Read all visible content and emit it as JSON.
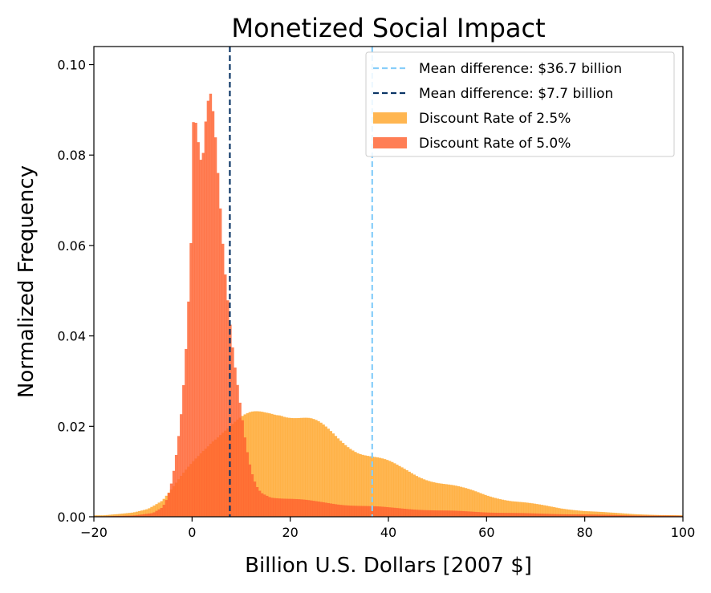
{
  "chart_data": {
    "type": "histogram",
    "title": "Monetized Social Impact",
    "xlabel": "Billion U.S. Dollars [2007 $]",
    "ylabel": "Normalized Frequency",
    "xlim": [
      -20,
      100
    ],
    "ylim": [
      0,
      0.104
    ],
    "xticks": [
      -20,
      0,
      20,
      40,
      60,
      80,
      100
    ],
    "xtick_labels": [
      "−20",
      "0",
      "20",
      "40",
      "60",
      "80",
      "100"
    ],
    "yticks": [
      0.0,
      0.02,
      0.04,
      0.06,
      0.08,
      0.1
    ],
    "ytick_labels": [
      "0.00",
      "0.02",
      "0.04",
      "0.06",
      "0.08",
      "0.10"
    ],
    "legend_position": "top-right",
    "vlines": [
      {
        "label": "Mean difference: $36.7 billion",
        "x": 36.7,
        "color": "#87CEFA",
        "style": "dashed"
      },
      {
        "label": "Mean difference: $7.7 billion",
        "x": 7.7,
        "color": "#0B3566",
        "style": "dashed"
      }
    ],
    "series": [
      {
        "name": "Discount Rate of 2.5%",
        "color": "#FFA62B",
        "opacity": 0.82,
        "points": [
          [
            -18,
            0.0003
          ],
          [
            -15,
            0.0006
          ],
          [
            -12,
            0.001
          ],
          [
            -9,
            0.0018
          ],
          [
            -6,
            0.0035
          ],
          [
            -4,
            0.006
          ],
          [
            -2,
            0.009
          ],
          [
            0,
            0.012
          ],
          [
            2,
            0.015
          ],
          [
            4,
            0.0175
          ],
          [
            6,
            0.019
          ],
          [
            8,
            0.02
          ],
          [
            10,
            0.021
          ],
          [
            12,
            0.022
          ],
          [
            14,
            0.0228
          ],
          [
            16,
            0.0235
          ],
          [
            18,
            0.0238
          ],
          [
            20,
            0.023
          ],
          [
            22,
            0.022
          ],
          [
            24,
            0.021
          ],
          [
            26,
            0.0198
          ],
          [
            28,
            0.0185
          ],
          [
            30,
            0.0172
          ],
          [
            32,
            0.016
          ],
          [
            34,
            0.0148
          ],
          [
            36,
            0.0138
          ],
          [
            38,
            0.0128
          ],
          [
            40,
            0.0118
          ],
          [
            42,
            0.0108
          ],
          [
            44,
            0.01
          ],
          [
            46,
            0.0092
          ],
          [
            48,
            0.0085
          ],
          [
            50,
            0.0078
          ],
          [
            55,
            0.0062
          ],
          [
            60,
            0.0048
          ],
          [
            65,
            0.0036
          ],
          [
            70,
            0.0027
          ],
          [
            75,
            0.0019
          ],
          [
            80,
            0.0013
          ],
          [
            85,
            0.0009
          ],
          [
            90,
            0.0006
          ],
          [
            95,
            0.0004
          ],
          [
            100,
            0.0003
          ]
        ]
      },
      {
        "name": "Discount Rate of 5.0%",
        "color": "#FF6230",
        "opacity": 0.82,
        "points": [
          [
            -18,
            0.0001
          ],
          [
            -12,
            0.0003
          ],
          [
            -8,
            0.0008
          ],
          [
            -6,
            0.002
          ],
          [
            -5,
            0.004
          ],
          [
            -4,
            0.008
          ],
          [
            -3,
            0.015
          ],
          [
            -2,
            0.025
          ],
          [
            -1,
            0.042
          ],
          [
            0,
            0.07
          ],
          [
            0.3,
            0.096
          ],
          [
            1,
            0.09
          ],
          [
            2,
            0.082
          ],
          [
            3,
            0.096
          ],
          [
            3.7,
            0.098
          ],
          [
            4.5,
            0.09
          ],
          [
            5.5,
            0.072
          ],
          [
            6.5,
            0.055
          ],
          [
            7.5,
            0.043
          ],
          [
            8.5,
            0.033
          ],
          [
            10,
            0.022
          ],
          [
            11,
            0.015
          ],
          [
            12,
            0.01
          ],
          [
            13,
            0.007
          ],
          [
            14,
            0.0055
          ],
          [
            16,
            0.0045
          ],
          [
            20,
            0.004
          ],
          [
            25,
            0.0033
          ],
          [
            30,
            0.0028
          ],
          [
            35,
            0.0024
          ],
          [
            40,
            0.002
          ],
          [
            50,
            0.0014
          ],
          [
            60,
            0.001
          ],
          [
            70,
            0.0007
          ],
          [
            80,
            0.0005
          ],
          [
            90,
            0.0003
          ],
          [
            100,
            0.0002
          ]
        ]
      }
    ]
  }
}
